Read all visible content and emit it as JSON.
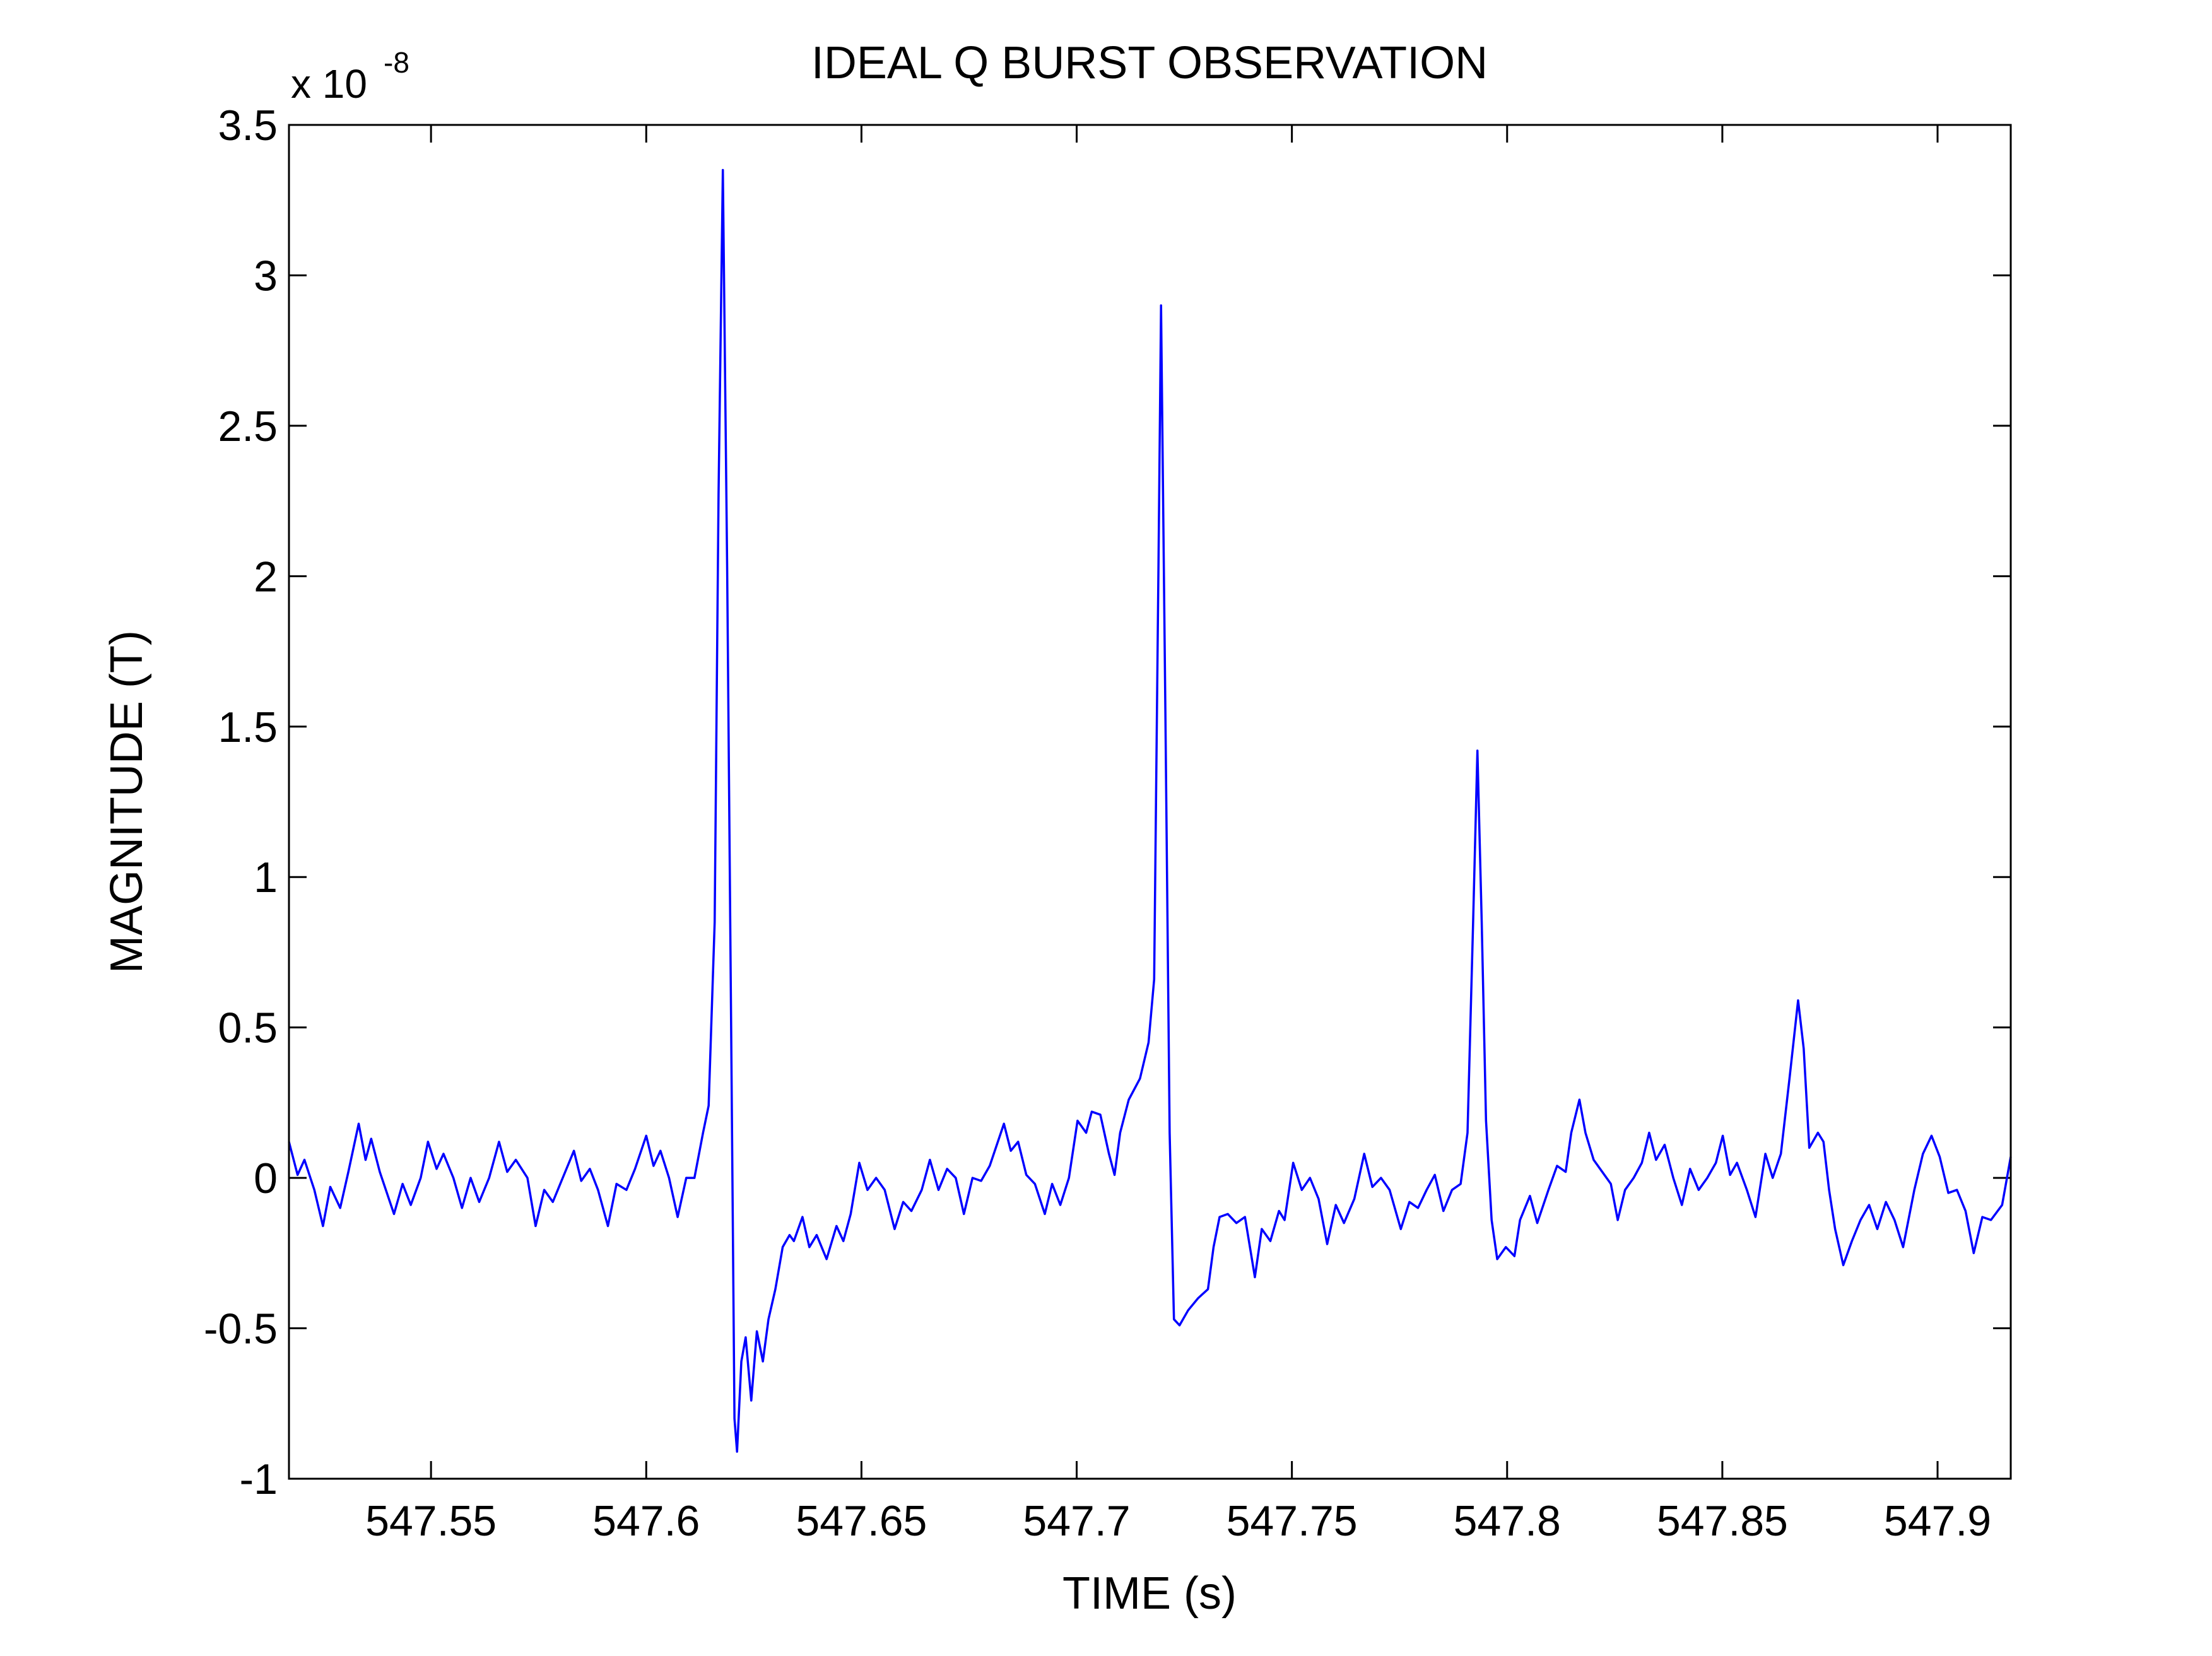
{
  "chart_data": {
    "type": "line",
    "title": "IDEAL Q BURST OBSERVATION",
    "x_label": "TIME (s)",
    "y_label": "MAGNITUDE (T)",
    "y_multiplier": "x 10",
    "y_exponent": "-8",
    "xlim": [
      547.517,
      547.917
    ],
    "ylim": [
      -1,
      3.5
    ],
    "xticks": [
      547.55,
      547.6,
      547.65,
      547.7,
      547.75,
      547.8,
      547.85,
      547.9
    ],
    "yticks": [
      -1,
      -0.5,
      0,
      0.5,
      1,
      1.5,
      2,
      2.5,
      3,
      3.5
    ],
    "grid": false,
    "x": [
      547.517,
      547.519,
      547.5206,
      547.5229,
      547.5249,
      547.5266,
      547.5289,
      547.5308,
      547.5332,
      547.5348,
      547.5361,
      547.5381,
      547.5414,
      547.5434,
      547.5453,
      547.5476,
      547.5493,
      547.5513,
      547.5529,
      547.5552,
      547.5572,
      547.5592,
      547.5612,
      547.5635,
      547.5658,
      547.5677,
      547.5697,
      547.5724,
      547.5743,
      547.5763,
      547.5783,
      547.5806,
      547.5832,
      547.5849,
      547.5869,
      547.5888,
      547.5911,
      547.5931,
      547.5954,
      547.5974,
      547.6,
      547.6017,
      547.6033,
      547.6053,
      547.6073,
      547.6093,
      547.6112,
      547.6132,
      547.6145,
      547.6159,
      547.6168,
      547.6178,
      547.6188,
      547.6198,
      547.6205,
      547.6211,
      547.6221,
      547.6231,
      547.6244,
      547.6257,
      547.6271,
      547.6284,
      547.63,
      547.6317,
      547.6333,
      547.6343,
      547.6363,
      547.6379,
      547.6396,
      547.6419,
      547.6442,
      547.6458,
      547.6475,
      547.6495,
      547.6514,
      547.6534,
      547.6554,
      547.6577,
      547.6597,
      547.6616,
      547.664,
      547.6659,
      547.6679,
      547.6699,
      547.6719,
      547.6738,
      547.6758,
      547.6778,
      547.6798,
      547.6831,
      547.6847,
      547.6864,
      547.6883,
      547.6903,
      547.6926,
      547.6943,
      547.6962,
      547.6982,
      547.7002,
      547.7022,
      547.7035,
      547.7055,
      547.7075,
      547.7088,
      547.7101,
      547.7121,
      547.7147,
      547.7167,
      547.718,
      547.719,
      547.7196,
      547.7206,
      547.7216,
      547.7226,
      547.7239,
      547.7259,
      547.7282,
      547.7305,
      547.7318,
      547.7332,
      547.7351,
      547.7371,
      547.7391,
      547.7414,
      547.743,
      547.745,
      547.747,
      547.7483,
      547.7503,
      547.7523,
      547.7542,
      547.7562,
      547.7582,
      547.7602,
      547.7621,
      547.7645,
      547.7668,
      547.7687,
      547.7707,
      547.7727,
      547.7753,
      547.7773,
      547.7793,
      547.7813,
      547.7832,
      547.7852,
      547.7872,
      547.7892,
      547.7908,
      547.7921,
      547.7931,
      547.7941,
      547.7951,
      547.7964,
      547.7977,
      547.7997,
      547.8017,
      547.803,
      547.8053,
      547.807,
      547.8096,
      547.8116,
      547.8136,
      547.8149,
      547.8168,
      547.8182,
      547.8201,
      547.8221,
      547.8241,
      547.8257,
      547.8274,
      547.8294,
      547.8313,
      547.833,
      547.8346,
      547.8366,
      547.8386,
      547.8406,
      547.8425,
      547.8445,
      547.8465,
      547.8485,
      547.8501,
      547.8518,
      547.8534,
      547.8557,
      547.8577,
      547.86,
      547.8617,
      547.8636,
      547.8656,
      547.8676,
      547.8689,
      547.8702,
      547.8722,
      547.8735,
      547.8748,
      547.8762,
      547.8781,
      547.8801,
      547.8821,
      547.8841,
      547.886,
      547.888,
      547.89,
      547.892,
      547.8946,
      547.8966,
      547.8986,
      547.9005,
      547.9025,
      547.9045,
      547.9065,
      547.9084,
      547.9104,
      547.9124,
      547.915,
      547.917
    ],
    "series": [
      {
        "color": "#0000ff",
        "values": [
          0.12,
          0.01,
          0.06,
          -0.04,
          -0.16,
          -0.03,
          -0.1,
          0.02,
          0.18,
          0.06,
          0.13,
          0.02,
          -0.12,
          -0.02,
          -0.09,
          0.0,
          0.12,
          0.03,
          0.08,
          0.0,
          -0.1,
          0.0,
          -0.08,
          0.0,
          0.12,
          0.02,
          0.06,
          0.0,
          -0.16,
          -0.04,
          -0.08,
          0.0,
          0.09,
          -0.01,
          0.03,
          -0.04,
          -0.16,
          -0.02,
          -0.04,
          0.03,
          0.14,
          0.04,
          0.09,
          0.0,
          -0.13,
          0.0,
          0.0,
          0.15,
          0.24,
          0.85,
          2.27,
          3.35,
          2.03,
          0.38,
          -0.8,
          -0.91,
          -0.61,
          -0.53,
          -0.74,
          -0.51,
          -0.61,
          -0.47,
          -0.37,
          -0.23,
          -0.19,
          -0.21,
          -0.13,
          -0.23,
          -0.19,
          -0.27,
          -0.16,
          -0.21,
          -0.12,
          0.05,
          -0.04,
          0.0,
          -0.04,
          -0.17,
          -0.08,
          -0.11,
          -0.04,
          0.06,
          -0.04,
          0.03,
          0.0,
          -0.12,
          0.0,
          -0.01,
          0.04,
          0.18,
          0.09,
          0.12,
          0.01,
          -0.02,
          -0.12,
          -0.02,
          -0.09,
          0.0,
          0.19,
          0.15,
          0.22,
          0.21,
          0.08,
          0.01,
          0.15,
          0.26,
          0.33,
          0.45,
          0.66,
          2.03,
          2.9,
          1.56,
          0.15,
          -0.47,
          -0.49,
          -0.44,
          -0.4,
          -0.37,
          -0.23,
          -0.13,
          -0.12,
          -0.15,
          -0.13,
          -0.33,
          -0.17,
          -0.21,
          -0.11,
          -0.14,
          0.05,
          -0.04,
          0.0,
          -0.07,
          -0.22,
          -0.09,
          -0.15,
          -0.07,
          0.08,
          -0.03,
          0.0,
          -0.04,
          -0.17,
          -0.08,
          -0.1,
          -0.04,
          0.01,
          -0.11,
          -0.04,
          -0.02,
          0.15,
          0.85,
          1.42,
          0.85,
          0.19,
          -0.14,
          -0.27,
          -0.23,
          -0.26,
          -0.14,
          -0.06,
          -0.15,
          -0.04,
          0.04,
          0.02,
          0.15,
          0.26,
          0.15,
          0.06,
          0.02,
          -0.02,
          -0.14,
          -0.04,
          0.0,
          0.05,
          0.15,
          0.06,
          0.11,
          0.0,
          -0.09,
          0.03,
          -0.04,
          0.0,
          0.05,
          0.14,
          0.01,
          0.05,
          -0.04,
          -0.13,
          0.08,
          0.0,
          0.08,
          0.33,
          0.59,
          0.43,
          0.1,
          0.15,
          0.12,
          -0.04,
          -0.17,
          -0.29,
          -0.21,
          -0.14,
          -0.09,
          -0.17,
          -0.08,
          -0.14,
          -0.23,
          -0.04,
          0.08,
          0.14,
          0.07,
          -0.05,
          -0.04,
          -0.11,
          -0.25,
          -0.13,
          -0.14,
          -0.09,
          0.07
        ]
      }
    ]
  }
}
